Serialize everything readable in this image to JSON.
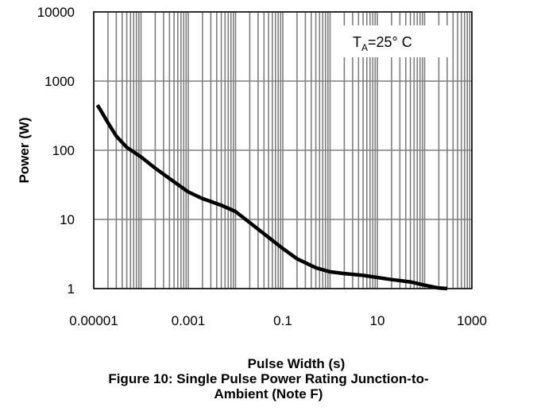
{
  "chart_data": {
    "type": "line",
    "x_scale": "log",
    "y_scale": "log",
    "xlim": [
      1e-05,
      1000
    ],
    "ylim": [
      1,
      10000
    ],
    "x_tick_labels": [
      "0.00001",
      "0.001",
      "0.1",
      "10",
      "1000"
    ],
    "y_tick_labels": [
      "1",
      "10",
      "100",
      "1000",
      "10000"
    ],
    "xlabel": "Pulse Width (s)",
    "ylabel": "Power (W)",
    "grid": true,
    "annotation": {
      "main": "T",
      "sub": "A",
      "rest": "=25° C"
    },
    "series": [
      {
        "color": "#000000",
        "x": [
          1.2e-05,
          1.5e-05,
          2e-05,
          3e-05,
          5e-05,
          0.0001,
          0.0002,
          0.0005,
          0.001,
          0.002,
          0.005,
          0.01,
          0.02,
          0.05,
          0.1,
          0.2,
          0.5,
          1,
          2,
          5,
          10,
          20,
          50,
          100,
          200,
          300
        ],
        "y": [
          450,
          350,
          250,
          160,
          110,
          80,
          55,
          35,
          25,
          20,
          16,
          13,
          9,
          5.5,
          3.8,
          2.7,
          2.0,
          1.75,
          1.65,
          1.55,
          1.45,
          1.35,
          1.25,
          1.12,
          1.02,
          1.0
        ]
      }
    ]
  },
  "caption": {
    "line1": "Pulse Width (s)",
    "line2": "Figure 10: Single Pulse Power Rating Junction-to-",
    "line3": "Ambient (Note F)"
  }
}
